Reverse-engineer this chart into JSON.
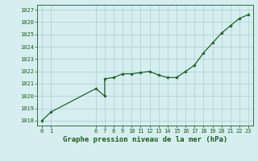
{
  "x": [
    0,
    1,
    6,
    7,
    7,
    8,
    9,
    10,
    11,
    12,
    13,
    14,
    15,
    16,
    17,
    18,
    19,
    20,
    21,
    22,
    23
  ],
  "y": [
    1018.0,
    1018.7,
    1020.6,
    1020.0,
    1021.4,
    1021.5,
    1021.8,
    1021.8,
    1021.9,
    1022.0,
    1021.7,
    1021.5,
    1021.5,
    1022.0,
    1022.5,
    1023.5,
    1024.3,
    1025.1,
    1025.7,
    1026.3,
    1026.6
  ],
  "line_color": "#1a5c1a",
  "marker_color": "#1a5c1a",
  "bg_color": "#d6eef0",
  "grid_color": "#aacdd2",
  "ylabel_ticks": [
    1018,
    1019,
    1020,
    1021,
    1022,
    1023,
    1024,
    1025,
    1026,
    1027
  ],
  "xlabel_ticks": [
    0,
    1,
    6,
    7,
    8,
    9,
    10,
    11,
    12,
    13,
    14,
    15,
    16,
    17,
    18,
    19,
    20,
    21,
    22,
    23
  ],
  "ylim": [
    1017.6,
    1027.4
  ],
  "xlim": [
    -0.5,
    23.5
  ],
  "xlabel": "Graphe pression niveau de la mer (hPa)",
  "xlabel_fontsize": 6.5,
  "tick_fontsize": 5.0,
  "marker_size": 2.8,
  "line_width": 0.85
}
